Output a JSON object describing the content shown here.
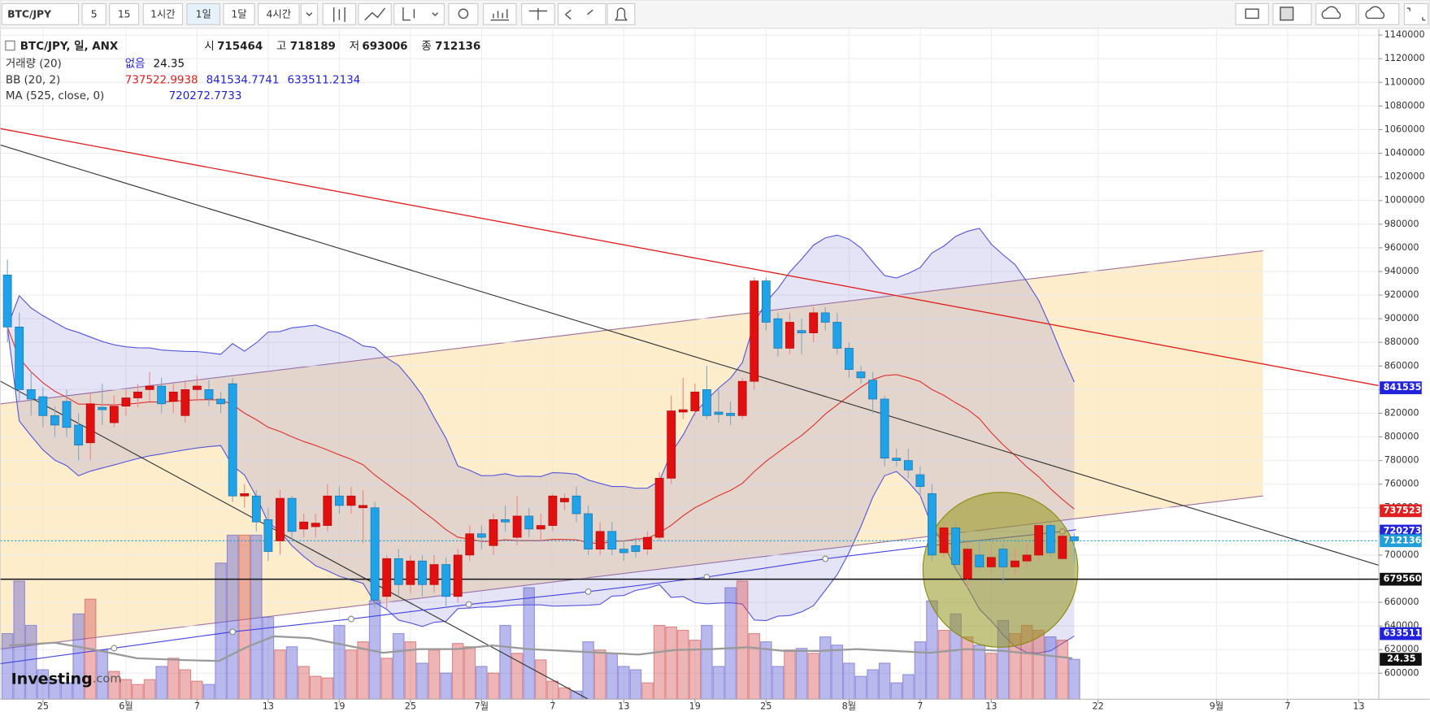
{
  "toolbar": {
    "symbol": "BTC/JPY",
    "intervals": [
      "5",
      "15",
      "1시간",
      "1일",
      "1달",
      "4시간"
    ],
    "active": 3
  },
  "legend": {
    "title": "BTC/JPY, 일, ANX",
    "ohlc_labels": [
      "시",
      "고",
      "저",
      "종"
    ],
    "volume_label": "거래량 (20)",
    "volume_note": "없음",
    "bb_label": "BB (20, 2)",
    "bb_values": [
      737522.9938,
      841534.7741,
      633511.2134
    ],
    "bb_colors": [
      "#e02020",
      "#2222dd",
      "#2222dd"
    ],
    "ma_label": "MA (525, close, 0)",
    "ma_value": 720272.7733
  },
  "watermark": {
    "main": "Investing",
    "suffix": ".com"
  },
  "chart_data": {
    "type": "candlestick",
    "ylim": [
      578000,
      1145000
    ],
    "yticks": [
      600000,
      620000,
      640000,
      660000,
      680000,
      700000,
      720000,
      740000,
      760000,
      780000,
      800000,
      820000,
      840000,
      860000,
      880000,
      900000,
      920000,
      940000,
      960000,
      980000,
      1000000,
      1020000,
      1040000,
      1060000,
      1080000,
      1100000,
      1120000,
      1140000
    ],
    "xlim": [
      -0.615,
      115.692
    ],
    "xticks": [
      {
        "value": 3,
        "label": "25"
      },
      {
        "value": 10,
        "label": "6월"
      },
      {
        "value": 16,
        "label": "7"
      },
      {
        "value": 22,
        "label": "13"
      },
      {
        "value": 28,
        "label": "19"
      },
      {
        "value": 34,
        "label": "25"
      },
      {
        "value": 40,
        "label": "7월"
      },
      {
        "value": 46,
        "label": "7"
      },
      {
        "value": 52,
        "label": "13"
      },
      {
        "value": 58,
        "label": "19"
      },
      {
        "value": 64,
        "label": "25"
      },
      {
        "value": 71,
        "label": "8월"
      },
      {
        "value": 77,
        "label": "7"
      },
      {
        "value": 83,
        "label": "13"
      },
      {
        "value": 92,
        "label": "22"
      },
      {
        "value": 102,
        "label": "9월"
      },
      {
        "value": 108,
        "label": "7"
      },
      {
        "value": 114,
        "label": "13"
      }
    ],
    "up_color": "#e01010",
    "down_color": "#1fa2e8",
    "volume_ylim": [
      0,
      100
    ],
    "candles": [
      {
        "open": 937000,
        "high": 950000,
        "low": 880000,
        "close": 893000
      },
      {
        "open": 893000,
        "high": 905000,
        "low": 830000,
        "close": 840000
      },
      {
        "open": 840000,
        "high": 855000,
        "low": 818000,
        "close": 832000
      },
      {
        "open": 834000,
        "high": 842000,
        "low": 808000,
        "close": 818000
      },
      {
        "open": 818000,
        "high": 826000,
        "low": 800000,
        "close": 810000
      },
      {
        "open": 830000,
        "high": 840000,
        "low": 800000,
        "close": 808000
      },
      {
        "open": 810000,
        "high": 820000,
        "low": 780000,
        "close": 793000
      },
      {
        "open": 795000,
        "high": 838000,
        "low": 780000,
        "close": 828000
      },
      {
        "open": 825000,
        "high": 845000,
        "low": 810000,
        "close": 823000
      },
      {
        "open": 812000,
        "high": 835000,
        "low": 808000,
        "close": 826000
      },
      {
        "open": 826000,
        "high": 840000,
        "low": 818000,
        "close": 833000
      },
      {
        "open": 833000,
        "high": 845000,
        "low": 825000,
        "close": 838000
      },
      {
        "open": 840000,
        "high": 855000,
        "low": 830000,
        "close": 843000
      },
      {
        "open": 843000,
        "high": 850000,
        "low": 820000,
        "close": 828000
      },
      {
        "open": 830000,
        "high": 845000,
        "low": 820000,
        "close": 838000
      },
      {
        "open": 818000,
        "high": 848000,
        "low": 812000,
        "close": 840000
      },
      {
        "open": 840000,
        "high": 852000,
        "low": 830000,
        "close": 843000
      },
      {
        "open": 840000,
        "high": 848000,
        "low": 826000,
        "close": 832000
      },
      {
        "open": 832000,
        "high": 838000,
        "low": 820000,
        "close": 828000
      },
      {
        "open": 845000,
        "high": 850000,
        "low": 745000,
        "close": 750000
      },
      {
        "open": 750000,
        "high": 760000,
        "low": 740000,
        "close": 752000
      },
      {
        "open": 750000,
        "high": 755000,
        "low": 720000,
        "close": 728000
      },
      {
        "open": 730000,
        "high": 740000,
        "low": 695000,
        "close": 703000
      },
      {
        "open": 712000,
        "high": 755000,
        "low": 700000,
        "close": 748000
      },
      {
        "open": 748000,
        "high": 750000,
        "low": 712000,
        "close": 720000
      },
      {
        "open": 722000,
        "high": 735000,
        "low": 715000,
        "close": 728000
      },
      {
        "open": 724000,
        "high": 735000,
        "low": 715000,
        "close": 727000
      },
      {
        "open": 725000,
        "high": 760000,
        "low": 720000,
        "close": 750000
      },
      {
        "open": 750000,
        "high": 758000,
        "low": 735000,
        "close": 742000
      },
      {
        "open": 742000,
        "high": 758000,
        "low": 735000,
        "close": 750000
      },
      {
        "open": 740000,
        "high": 755000,
        "low": 710000,
        "close": 742000
      },
      {
        "open": 740000,
        "high": 745000,
        "low": 655000,
        "close": 662000
      },
      {
        "open": 665000,
        "high": 700000,
        "low": 655000,
        "close": 697000
      },
      {
        "open": 697000,
        "high": 705000,
        "low": 665000,
        "close": 675000
      },
      {
        "open": 675000,
        "high": 700000,
        "low": 668000,
        "close": 695000
      },
      {
        "open": 695000,
        "high": 700000,
        "low": 665000,
        "close": 675000
      },
      {
        "open": 675000,
        "high": 700000,
        "low": 668000,
        "close": 692000
      },
      {
        "open": 692000,
        "high": 698000,
        "low": 655000,
        "close": 665000
      },
      {
        "open": 665000,
        "high": 705000,
        "low": 660000,
        "close": 700000
      },
      {
        "open": 700000,
        "high": 725000,
        "low": 695000,
        "close": 718000
      },
      {
        "open": 718000,
        "high": 725000,
        "low": 705000,
        "close": 715000
      },
      {
        "open": 708000,
        "high": 735000,
        "low": 700000,
        "close": 730000
      },
      {
        "open": 730000,
        "high": 742000,
        "low": 720000,
        "close": 728000
      },
      {
        "open": 715000,
        "high": 750000,
        "low": 708000,
        "close": 733000
      },
      {
        "open": 733000,
        "high": 740000,
        "low": 715000,
        "close": 722000
      },
      {
        "open": 722000,
        "high": 735000,
        "low": 712000,
        "close": 725000
      },
      {
        "open": 725000,
        "high": 752000,
        "low": 720000,
        "close": 750000
      },
      {
        "open": 745000,
        "high": 752000,
        "low": 738000,
        "close": 748000
      },
      {
        "open": 750000,
        "high": 758000,
        "low": 728000,
        "close": 735000
      },
      {
        "open": 735000,
        "high": 742000,
        "low": 700000,
        "close": 705000
      },
      {
        "open": 705000,
        "high": 728000,
        "low": 700000,
        "close": 720000
      },
      {
        "open": 720000,
        "high": 728000,
        "low": 700000,
        "close": 705000
      },
      {
        "open": 705000,
        "high": 712000,
        "low": 695000,
        "close": 702000
      },
      {
        "open": 708000,
        "high": 715000,
        "low": 698000,
        "close": 703000
      },
      {
        "open": 705000,
        "high": 720000,
        "low": 700000,
        "close": 715000
      },
      {
        "open": 715000,
        "high": 770000,
        "low": 712000,
        "close": 765000
      },
      {
        "open": 765000,
        "high": 835000,
        "low": 760000,
        "close": 822000
      },
      {
        "open": 821000,
        "high": 850000,
        "low": 815000,
        "close": 823000
      },
      {
        "open": 822000,
        "high": 845000,
        "low": 818000,
        "close": 838000
      },
      {
        "open": 840000,
        "high": 860000,
        "low": 815000,
        "close": 818000
      },
      {
        "open": 821000,
        "high": 840000,
        "low": 812000,
        "close": 819000
      },
      {
        "open": 820000,
        "high": 830000,
        "low": 810000,
        "close": 818000
      },
      {
        "open": 818000,
        "high": 850000,
        "low": 815000,
        "close": 847000
      },
      {
        "open": 847000,
        "high": 935000,
        "low": 840000,
        "close": 932000
      },
      {
        "open": 932000,
        "high": 935000,
        "low": 890000,
        "close": 897000
      },
      {
        "open": 900000,
        "high": 905000,
        "low": 868000,
        "close": 875000
      },
      {
        "open": 875000,
        "high": 905000,
        "low": 870000,
        "close": 897000
      },
      {
        "open": 890000,
        "high": 900000,
        "low": 870000,
        "close": 888000
      },
      {
        "open": 888000,
        "high": 910000,
        "low": 880000,
        "close": 905000
      },
      {
        "open": 905000,
        "high": 910000,
        "low": 890000,
        "close": 897000
      },
      {
        "open": 897000,
        "high": 905000,
        "low": 870000,
        "close": 875000
      },
      {
        "open": 875000,
        "high": 880000,
        "low": 850000,
        "close": 857000
      },
      {
        "open": 855000,
        "high": 860000,
        "low": 845000,
        "close": 850000
      },
      {
        "open": 848000,
        "high": 855000,
        "low": 820000,
        "close": 832000
      },
      {
        "open": 832000,
        "high": 835000,
        "low": 775000,
        "close": 782000
      },
      {
        "open": 782000,
        "high": 790000,
        "low": 775000,
        "close": 780000
      },
      {
        "open": 780000,
        "high": 790000,
        "low": 765000,
        "close": 772000
      },
      {
        "open": 768000,
        "high": 775000,
        "low": 750000,
        "close": 758000
      },
      {
        "open": 752000,
        "high": 760000,
        "low": 695000,
        "close": 700000
      },
      {
        "open": 702000,
        "high": 728000,
        "low": 698000,
        "close": 723000
      },
      {
        "open": 723000,
        "high": 728000,
        "low": 688000,
        "close": 692000
      },
      {
        "open": 680000,
        "high": 712000,
        "low": 672000,
        "close": 705000
      },
      {
        "open": 700000,
        "high": 712000,
        "low": 688000,
        "close": 690000
      },
      {
        "open": 690000,
        "high": 705000,
        "low": 685000,
        "close": 698000
      },
      {
        "open": 705000,
        "high": 710000,
        "low": 675000,
        "close": 690000
      },
      {
        "open": 690000,
        "high": 705000,
        "low": 683000,
        "close": 695000
      },
      {
        "open": 695000,
        "high": 710000,
        "low": 690000,
        "close": 700000
      },
      {
        "open": 700000,
        "high": 730000,
        "low": 695000,
        "close": 725000
      },
      {
        "open": 725000,
        "high": 728000,
        "low": 698000,
        "close": 702000
      },
      {
        "open": 697000,
        "high": 722000,
        "low": 695000,
        "close": 716000
      },
      {
        "open": 715464,
        "high": 718189,
        "low": 693006,
        "close": 712136
      }
    ],
    "volume": [
      40,
      72,
      45,
      18,
      12,
      10,
      52,
      61,
      30,
      17,
      12,
      9,
      12,
      20,
      25,
      18,
      11,
      9,
      83,
      100,
      100,
      100,
      50,
      30,
      32,
      20,
      14,
      13,
      45,
      30,
      35,
      60,
      25,
      40,
      35,
      22,
      30,
      16,
      34,
      32,
      20,
      16,
      45,
      28,
      68,
      24,
      11,
      7,
      5,
      35,
      30,
      28,
      20,
      18,
      10,
      45,
      44,
      42,
      36,
      45,
      20,
      68,
      72,
      40,
      35,
      20,
      30,
      31,
      28,
      38,
      33,
      22,
      14,
      18,
      22,
      10,
      15,
      35,
      60,
      42,
      52,
      38,
      33,
      28,
      48,
      40,
      45,
      42,
      38,
      36,
      24.35
    ],
    "price_tags": [
      {
        "value": 841535,
        "color": "#2222dd"
      },
      {
        "value": 737523,
        "color": "#e02020"
      },
      {
        "value": 720273,
        "color": "#2222dd"
      },
      {
        "value": 712136,
        "color": "#1e9fd8"
      },
      {
        "value": 679560,
        "color": "#111111"
      },
      {
        "value": 633511,
        "color": "#2222dd"
      }
    ],
    "hline": 679560
  }
}
